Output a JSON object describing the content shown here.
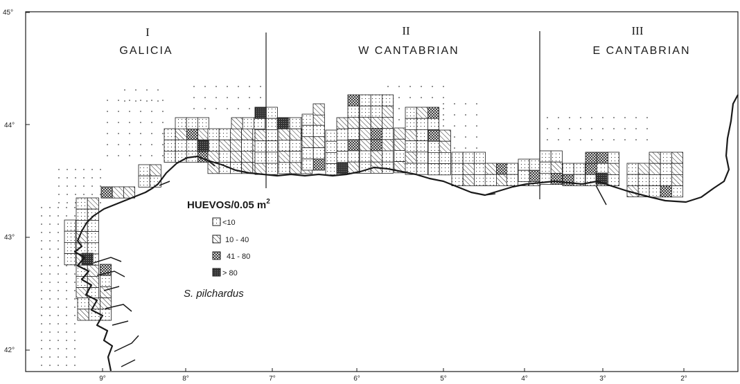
{
  "map": {
    "regions": [
      {
        "numeral": "I",
        "name": "GALICIA"
      },
      {
        "numeral": "II",
        "name": "W CANTABRIAN"
      },
      {
        "numeral": "III",
        "name": "E CANTABRIAN"
      }
    ],
    "lat_ticks": [
      "45°",
      "44°",
      "43°",
      "42°"
    ],
    "lon_ticks": [
      "9°",
      "8°",
      "7°",
      "6°",
      "5°",
      "4°",
      "3°",
      "2°"
    ],
    "legend": {
      "title": "HUEVOS/0.05 m",
      "title_sup": "2",
      "items": [
        {
          "label": "<10",
          "class": "low"
        },
        {
          "label": "10 - 40",
          "class": "mid"
        },
        {
          "label": "41 - 80",
          "class": "high"
        },
        {
          "label": "> 80",
          "class": "vhigh"
        }
      ]
    },
    "species": "S. pilchardus",
    "colors": {
      "ink": "#1a1a1a",
      "paper": "#ffffff"
    }
  }
}
